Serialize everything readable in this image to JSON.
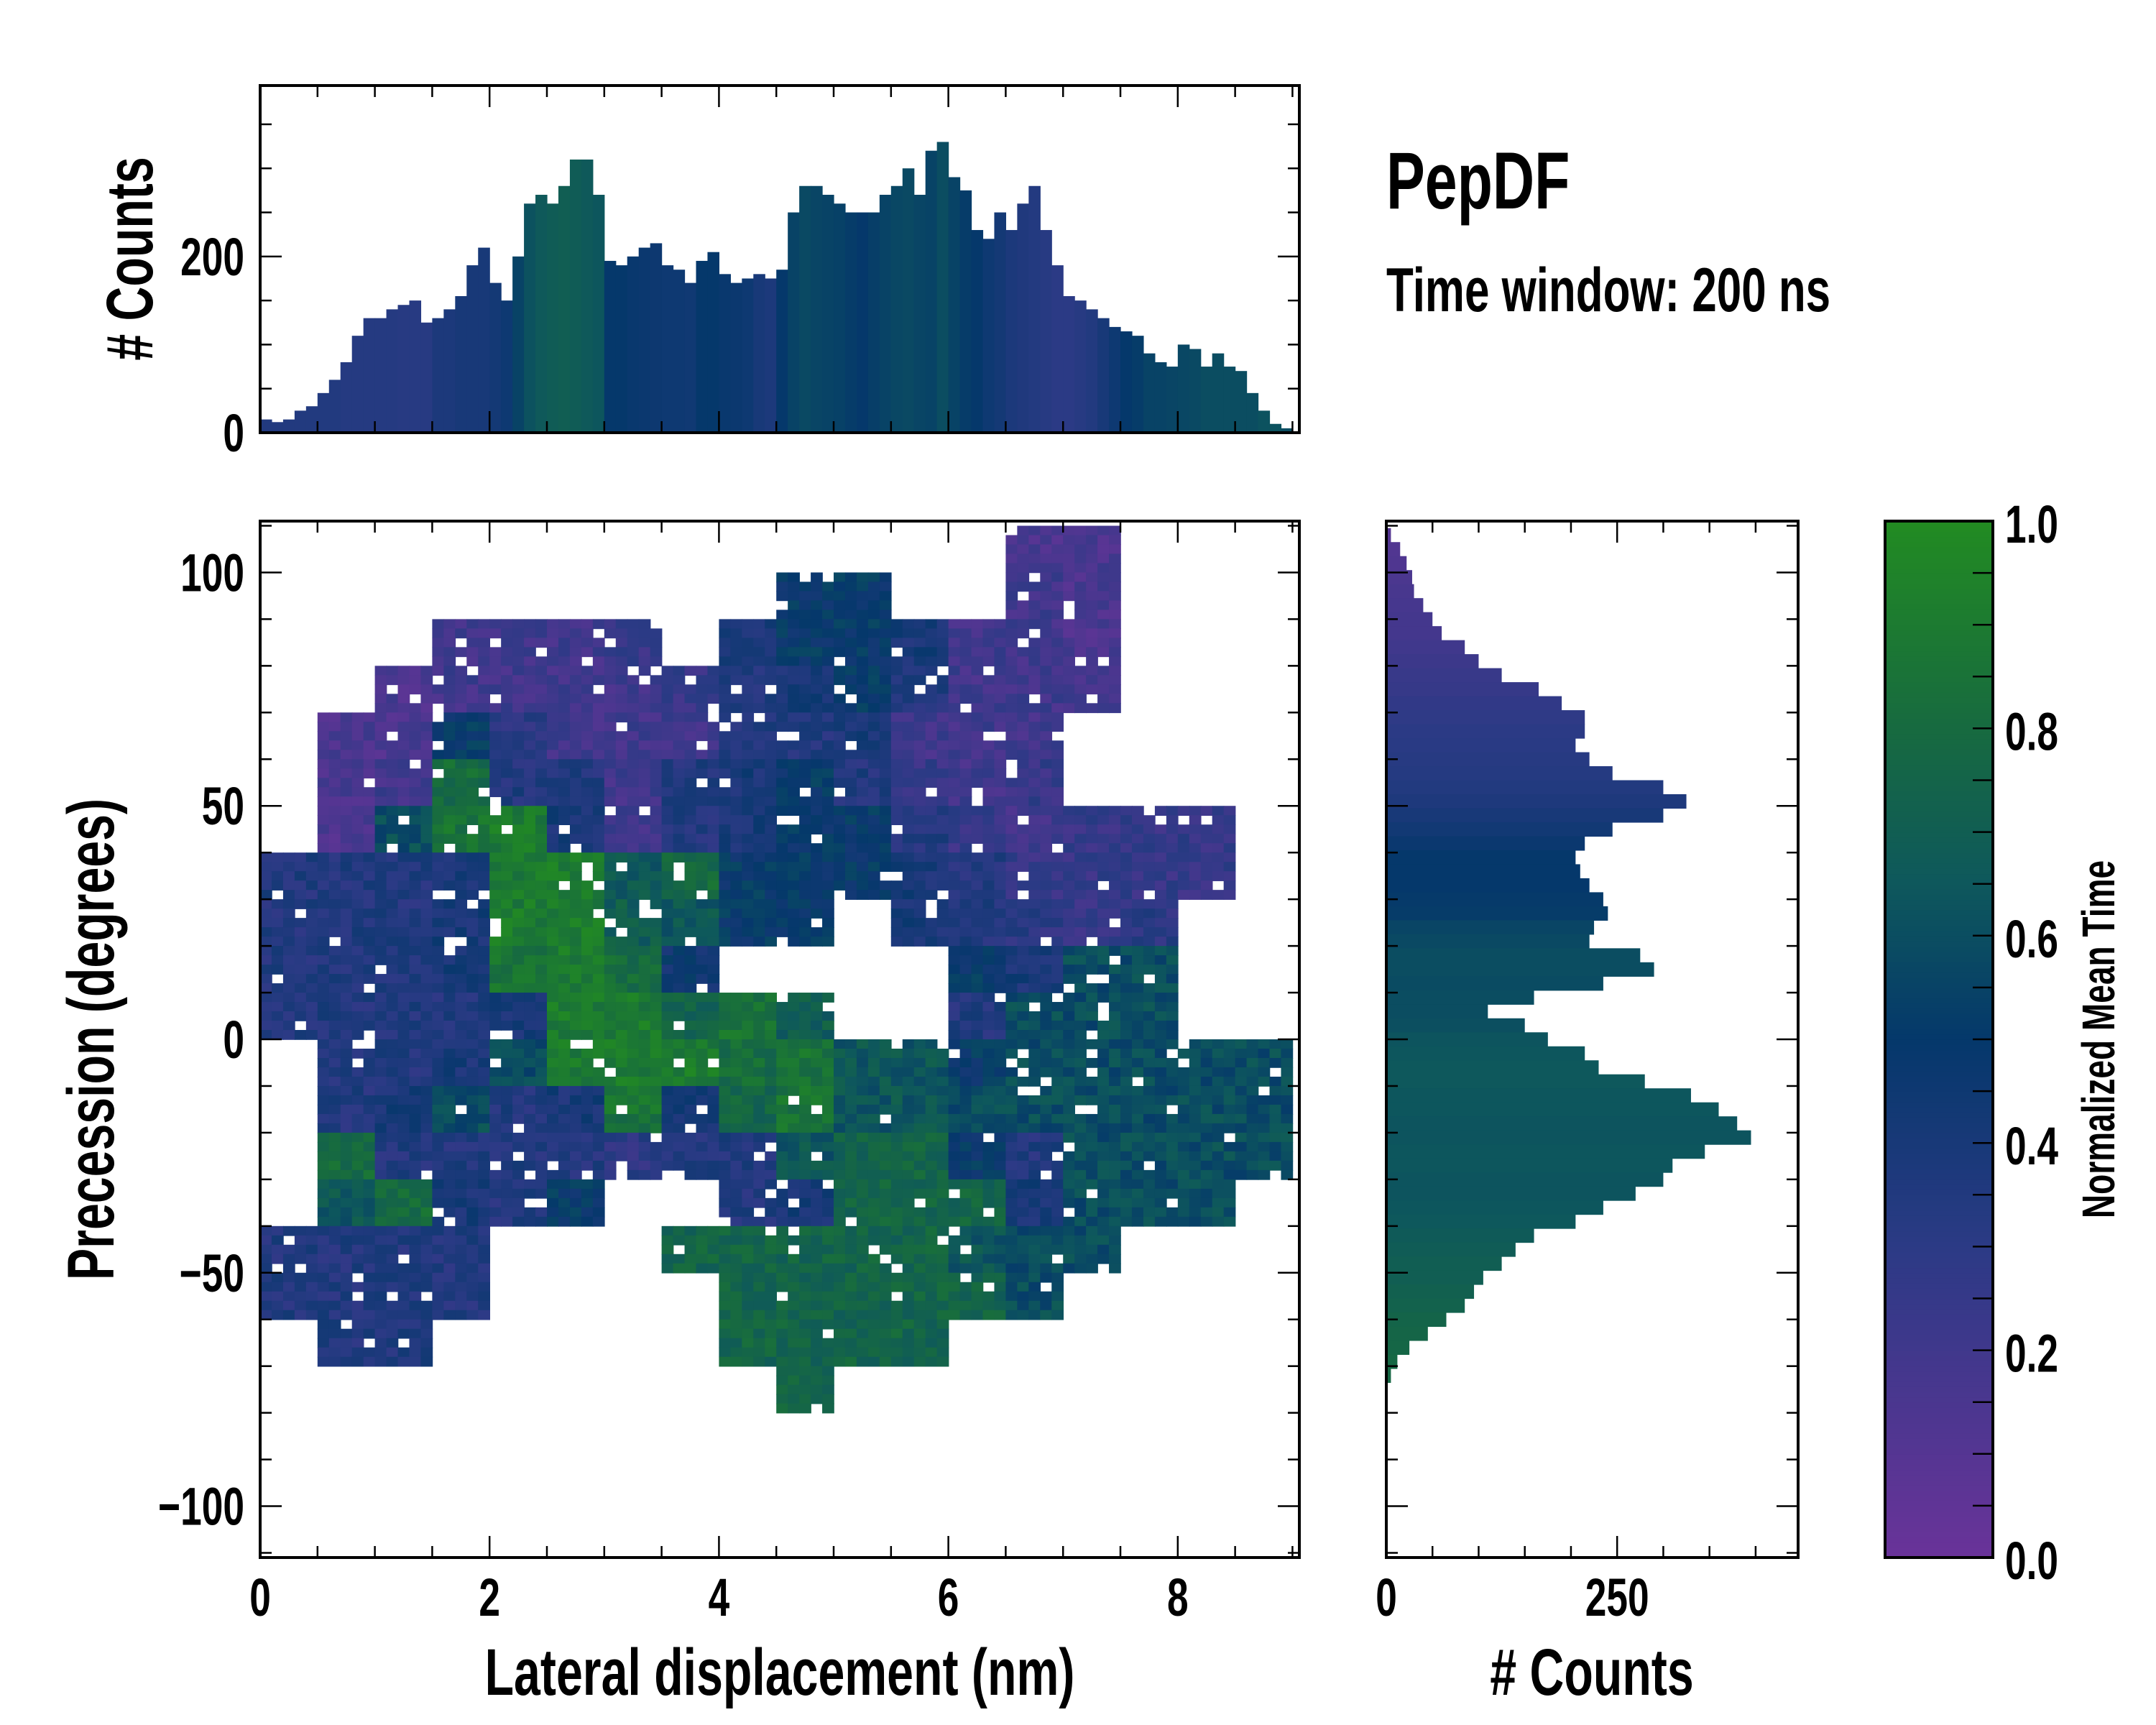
{
  "title": "PepDF",
  "subtitle": "Time window: 200 ns",
  "chart_data": [
    {
      "type": "bar",
      "name": "top-histogram",
      "ylabel": "# Counts",
      "xlim": [
        0,
        9.06
      ],
      "ylim": [
        0,
        394
      ],
      "yticks": [
        {
          "v": 0,
          "label": "0"
        },
        {
          "v": 200,
          "label": "200"
        }
      ],
      "bin_width": 0.1,
      "x_start": 0,
      "values": [
        15,
        12,
        15,
        25,
        30,
        45,
        60,
        80,
        110,
        130,
        130,
        140,
        145,
        150,
        125,
        130,
        140,
        155,
        190,
        210,
        170,
        150,
        200,
        260,
        270,
        260,
        280,
        310,
        310,
        270,
        195,
        190,
        200,
        210,
        215,
        190,
        185,
        170,
        195,
        205,
        180,
        170,
        175,
        180,
        175,
        185,
        250,
        280,
        280,
        270,
        260,
        250,
        250,
        250,
        270,
        280,
        300,
        270,
        320,
        330,
        290,
        275,
        230,
        220,
        250,
        230,
        260,
        280,
        230,
        190,
        155,
        150,
        140,
        130,
        120,
        115,
        110,
        90,
        80,
        75,
        100,
        95,
        75,
        90,
        75,
        70,
        45,
        25,
        10,
        5
      ],
      "mean_time": [
        0.35,
        0.35,
        0.35,
        0.35,
        0.35,
        0.35,
        0.35,
        0.33,
        0.33,
        0.33,
        0.33,
        0.33,
        0.32,
        0.32,
        0.32,
        0.38,
        0.38,
        0.4,
        0.4,
        0.4,
        0.42,
        0.45,
        0.55,
        0.62,
        0.66,
        0.68,
        0.7,
        0.68,
        0.66,
        0.64,
        0.5,
        0.5,
        0.48,
        0.47,
        0.46,
        0.45,
        0.45,
        0.44,
        0.5,
        0.5,
        0.48,
        0.47,
        0.45,
        0.4,
        0.38,
        0.5,
        0.55,
        0.58,
        0.56,
        0.55,
        0.54,
        0.52,
        0.5,
        0.53,
        0.55,
        0.57,
        0.58,
        0.56,
        0.55,
        0.6,
        0.55,
        0.52,
        0.5,
        0.45,
        0.42,
        0.38,
        0.36,
        0.34,
        0.32,
        0.3,
        0.3,
        0.32,
        0.35,
        0.4,
        0.45,
        0.5,
        0.52,
        0.55,
        0.55,
        0.56,
        0.57,
        0.58,
        0.6,
        0.6,
        0.6,
        0.6,
        0.6,
        0.62,
        0.62,
        0.6
      ]
    },
    {
      "type": "heatmap",
      "name": "main-heatmap",
      "xlabel": "Lateral displacement (nm)",
      "ylabel": "Precession (degrees)",
      "xlim": [
        0,
        9.06
      ],
      "ylim": [
        -111,
        111
      ],
      "xticks": [
        {
          "v": 0,
          "label": "0"
        },
        {
          "v": 2,
          "label": "2"
        },
        {
          "v": 4,
          "label": "4"
        },
        {
          "v": 6,
          "label": "6"
        },
        {
          "v": 8,
          "label": "8"
        }
      ],
      "yticks": [
        {
          "v": 100,
          "label": "100"
        },
        {
          "v": 50,
          "label": "50"
        },
        {
          "v": 0,
          "label": "0"
        },
        {
          "v": -50,
          "label": "−50"
        },
        {
          "v": -100,
          "label": "−100"
        }
      ],
      "x_centers": [
        0.25,
        0.75,
        1.25,
        1.75,
        2.25,
        2.75,
        3.25,
        3.75,
        4.25,
        4.75,
        5.25,
        5.75,
        6.25,
        6.75,
        7.25,
        7.75,
        8.25,
        8.75
      ],
      "y_centers": [
        105,
        95,
        85,
        75,
        65,
        55,
        45,
        35,
        25,
        15,
        5,
        -5,
        -15,
        -25,
        -35,
        -45,
        -55,
        -65,
        -75
      ],
      "values": [
        [
          null,
          null,
          null,
          null,
          null,
          null,
          null,
          null,
          null,
          null,
          null,
          null,
          null,
          0.15,
          0.15,
          null,
          null,
          null
        ],
        [
          null,
          null,
          null,
          null,
          null,
          null,
          null,
          null,
          null,
          0.5,
          0.5,
          null,
          null,
          0.2,
          0.15,
          null,
          null,
          null
        ],
        [
          null,
          null,
          null,
          0.2,
          0.2,
          0.2,
          0.25,
          null,
          0.4,
          0.5,
          0.5,
          0.4,
          0.2,
          0.2,
          0.15,
          null,
          null,
          null
        ],
        [
          null,
          null,
          0.15,
          0.2,
          0.2,
          0.2,
          0.2,
          0.25,
          0.35,
          0.4,
          0.5,
          0.35,
          0.2,
          0.2,
          0.2,
          null,
          null,
          null
        ],
        [
          null,
          0.15,
          0.15,
          0.5,
          0.3,
          0.2,
          0.2,
          0.2,
          0.35,
          0.35,
          0.4,
          0.2,
          0.2,
          0.2,
          null,
          null,
          null,
          null
        ],
        [
          null,
          0.15,
          0.2,
          0.8,
          0.35,
          0.35,
          0.2,
          0.35,
          0.4,
          0.5,
          0.35,
          0.25,
          0.2,
          0.25,
          null,
          null,
          null,
          null
        ],
        [
          null,
          0.15,
          0.6,
          0.85,
          0.9,
          0.4,
          0.2,
          0.35,
          0.4,
          0.5,
          0.5,
          0.35,
          0.25,
          0.2,
          0.25,
          0.25,
          0.25,
          null
        ],
        [
          0.35,
          0.35,
          0.35,
          0.4,
          0.9,
          0.9,
          0.65,
          0.8,
          0.5,
          0.5,
          0.5,
          0.4,
          0.35,
          0.25,
          0.25,
          0.25,
          0.25,
          null
        ],
        [
          0.35,
          0.35,
          0.35,
          0.4,
          0.9,
          0.9,
          0.7,
          0.65,
          0.5,
          0.5,
          null,
          0.4,
          0.35,
          0.3,
          0.25,
          0.3,
          null,
          null
        ],
        [
          0.35,
          0.35,
          0.35,
          0.4,
          0.85,
          0.9,
          0.8,
          0.45,
          null,
          null,
          null,
          null,
          0.5,
          0.4,
          0.6,
          0.6,
          null,
          null
        ],
        [
          0.35,
          0.35,
          0.35,
          0.35,
          0.4,
          0.9,
          0.9,
          0.75,
          0.85,
          0.7,
          null,
          null,
          0.35,
          0.6,
          0.6,
          0.6,
          null,
          null
        ],
        [
          null,
          0.35,
          0.35,
          0.4,
          0.6,
          0.9,
          0.9,
          0.9,
          0.8,
          0.85,
          0.65,
          0.65,
          0.5,
          0.6,
          0.6,
          0.6,
          0.6,
          0.6
        ],
        [
          null,
          0.35,
          0.4,
          0.6,
          0.35,
          0.4,
          0.85,
          0.4,
          0.75,
          0.85,
          0.65,
          0.65,
          0.6,
          0.6,
          0.6,
          0.6,
          0.6,
          0.6
        ],
        [
          null,
          0.8,
          0.35,
          0.35,
          0.35,
          0.35,
          0.3,
          0.35,
          0.35,
          0.65,
          0.75,
          0.75,
          0.5,
          0.35,
          0.6,
          0.6,
          0.6,
          0.6
        ],
        [
          null,
          0.65,
          0.8,
          0.4,
          0.35,
          0.5,
          null,
          null,
          0.35,
          0.4,
          0.75,
          0.75,
          0.75,
          0.4,
          0.6,
          0.6,
          0.6,
          null
        ],
        [
          0.35,
          0.35,
          0.35,
          0.35,
          null,
          null,
          null,
          0.75,
          0.75,
          0.75,
          0.75,
          0.75,
          0.65,
          0.6,
          0.6,
          null,
          null,
          null
        ],
        [
          0.35,
          0.35,
          0.35,
          0.35,
          null,
          null,
          null,
          null,
          0.75,
          0.75,
          0.75,
          0.75,
          0.75,
          0.6,
          null,
          null,
          null,
          null
        ],
        [
          null,
          0.35,
          0.35,
          null,
          null,
          null,
          null,
          null,
          0.75,
          0.75,
          0.75,
          0.75,
          null,
          null,
          null,
          null,
          null,
          null
        ],
        [
          null,
          null,
          null,
          null,
          null,
          null,
          null,
          null,
          null,
          0.75,
          null,
          null,
          null,
          null,
          null,
          null,
          null,
          null
        ]
      ]
    },
    {
      "type": "bar",
      "orientation": "horizontal",
      "name": "right-histogram",
      "xlabel": "# Counts",
      "xlim": [
        0,
        446
      ],
      "ylim": [
        -111,
        111
      ],
      "xticks": [
        {
          "v": 0,
          "label": "0"
        },
        {
          "v": 250,
          "label": "250"
        }
      ],
      "bin_width": 3,
      "y_centers": [
        108,
        105,
        102,
        99,
        96,
        93,
        90,
        87,
        84,
        81,
        78,
        75,
        72,
        69,
        66,
        63,
        60,
        57,
        54,
        51,
        48,
        45,
        42,
        39,
        36,
        33,
        30,
        27,
        24,
        21,
        18,
        15,
        12,
        9,
        6,
        3,
        0,
        -3,
        -6,
        -9,
        -12,
        -15,
        -18,
        -21,
        -24,
        -27,
        -30,
        -33,
        -36,
        -39,
        -42,
        -45,
        -48,
        -51,
        -54,
        -57,
        -60,
        -63,
        -66,
        -69,
        -72
      ],
      "values": [
        5,
        15,
        22,
        28,
        30,
        40,
        50,
        60,
        85,
        100,
        125,
        165,
        190,
        215,
        215,
        205,
        220,
        245,
        300,
        325,
        300,
        245,
        215,
        205,
        210,
        220,
        235,
        240,
        225,
        220,
        275,
        290,
        235,
        160,
        110,
        150,
        175,
        215,
        230,
        280,
        330,
        360,
        380,
        395,
        345,
        310,
        300,
        270,
        235,
        205,
        160,
        140,
        125,
        105,
        95,
        85,
        65,
        45,
        25,
        12,
        5
      ],
      "mean_time": [
        0.1,
        0.12,
        0.13,
        0.15,
        0.16,
        0.17,
        0.18,
        0.18,
        0.2,
        0.22,
        0.24,
        0.25,
        0.27,
        0.28,
        0.3,
        0.31,
        0.32,
        0.33,
        0.35,
        0.37,
        0.4,
        0.43,
        0.47,
        0.5,
        0.5,
        0.5,
        0.51,
        0.52,
        0.56,
        0.58,
        0.6,
        0.6,
        0.59,
        0.6,
        0.6,
        0.61,
        0.63,
        0.64,
        0.65,
        0.65,
        0.64,
        0.64,
        0.63,
        0.63,
        0.64,
        0.64,
        0.63,
        0.63,
        0.64,
        0.65,
        0.67,
        0.68,
        0.7,
        0.7,
        0.72,
        0.73,
        0.75,
        0.76,
        0.77,
        0.78,
        0.78
      ]
    },
    {
      "type": "colorbar",
      "name": "colorbar",
      "label": "Normalized Mean Time",
      "range": [
        0,
        1
      ],
      "ticks": [
        {
          "v": 0,
          "label": "0.0"
        },
        {
          "v": 0.2,
          "label": "0.2"
        },
        {
          "v": 0.4,
          "label": "0.4"
        },
        {
          "v": 0.6,
          "label": "0.6"
        },
        {
          "v": 0.8,
          "label": "0.8"
        },
        {
          "v": 1.0,
          "label": "1.0"
        }
      ],
      "colormap": [
        {
          "v": 0.0,
          "color": "#6a3399"
        },
        {
          "v": 0.3,
          "color": "#2b3a85"
        },
        {
          "v": 0.5,
          "color": "#05386b"
        },
        {
          "v": 0.65,
          "color": "#0e585c"
        },
        {
          "v": 0.8,
          "color": "#176a40"
        },
        {
          "v": 1.0,
          "color": "#228b22"
        }
      ]
    }
  ]
}
